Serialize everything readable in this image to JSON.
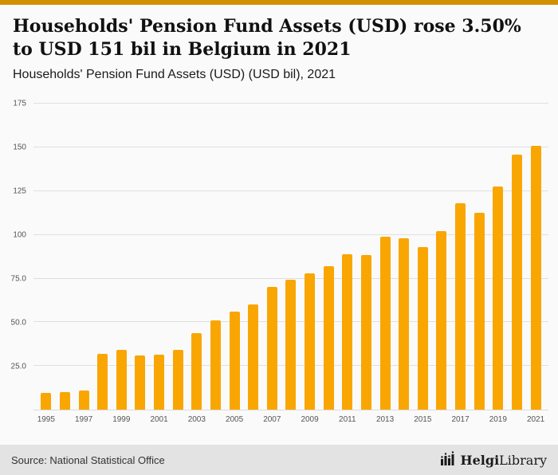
{
  "colors": {
    "accent_top_bar": "#D49000",
    "page_bg": "#FAFAFA",
    "footer_bg": "#E3E3E3"
  },
  "header": {
    "title": "Households' Pension Fund Assets (USD) rose 3.50% to USD 151 bil in Belgium in 2021",
    "subtitle": "Households' Pension Fund Assets (USD) (USD bil), 2021"
  },
  "chart_data": {
    "type": "bar",
    "title": "Households' Pension Fund Assets (USD) (USD bil), 2021",
    "xlabel": "",
    "ylabel": "",
    "bar_color": "#F9A602",
    "ylim": [
      0,
      180
    ],
    "grid": true,
    "yticks": [
      25,
      50,
      75,
      100,
      125,
      150,
      175
    ],
    "ytick_labels": [
      "25.0",
      "50.0",
      "75.0",
      "100",
      "125",
      "150",
      "175"
    ],
    "x": [
      1995,
      1996,
      1997,
      1998,
      1999,
      2000,
      2001,
      2002,
      2003,
      2004,
      2005,
      2006,
      2007,
      2008,
      2009,
      2010,
      2011,
      2012,
      2013,
      2014,
      2015,
      2016,
      2017,
      2018,
      2019,
      2020,
      2021
    ],
    "values": [
      9.5,
      10.2,
      11.0,
      32.0,
      34.0,
      31.0,
      31.5,
      34.0,
      44.0,
      51.0,
      56.0,
      60.0,
      70.0,
      74.5,
      78.0,
      82.0,
      89.0,
      88.5,
      99.0,
      98.0,
      93.0,
      102.0,
      118.0,
      112.5,
      127.5,
      145.9,
      151.0
    ],
    "labeled_years": [
      1995,
      1997,
      1999,
      2001,
      2003,
      2005,
      2007,
      2009,
      2011,
      2013,
      2015,
      2017,
      2019,
      2021
    ]
  },
  "footer": {
    "source": "Source: National Statistical Office",
    "logo_bold": "Helgi",
    "logo_regular": "Library"
  }
}
